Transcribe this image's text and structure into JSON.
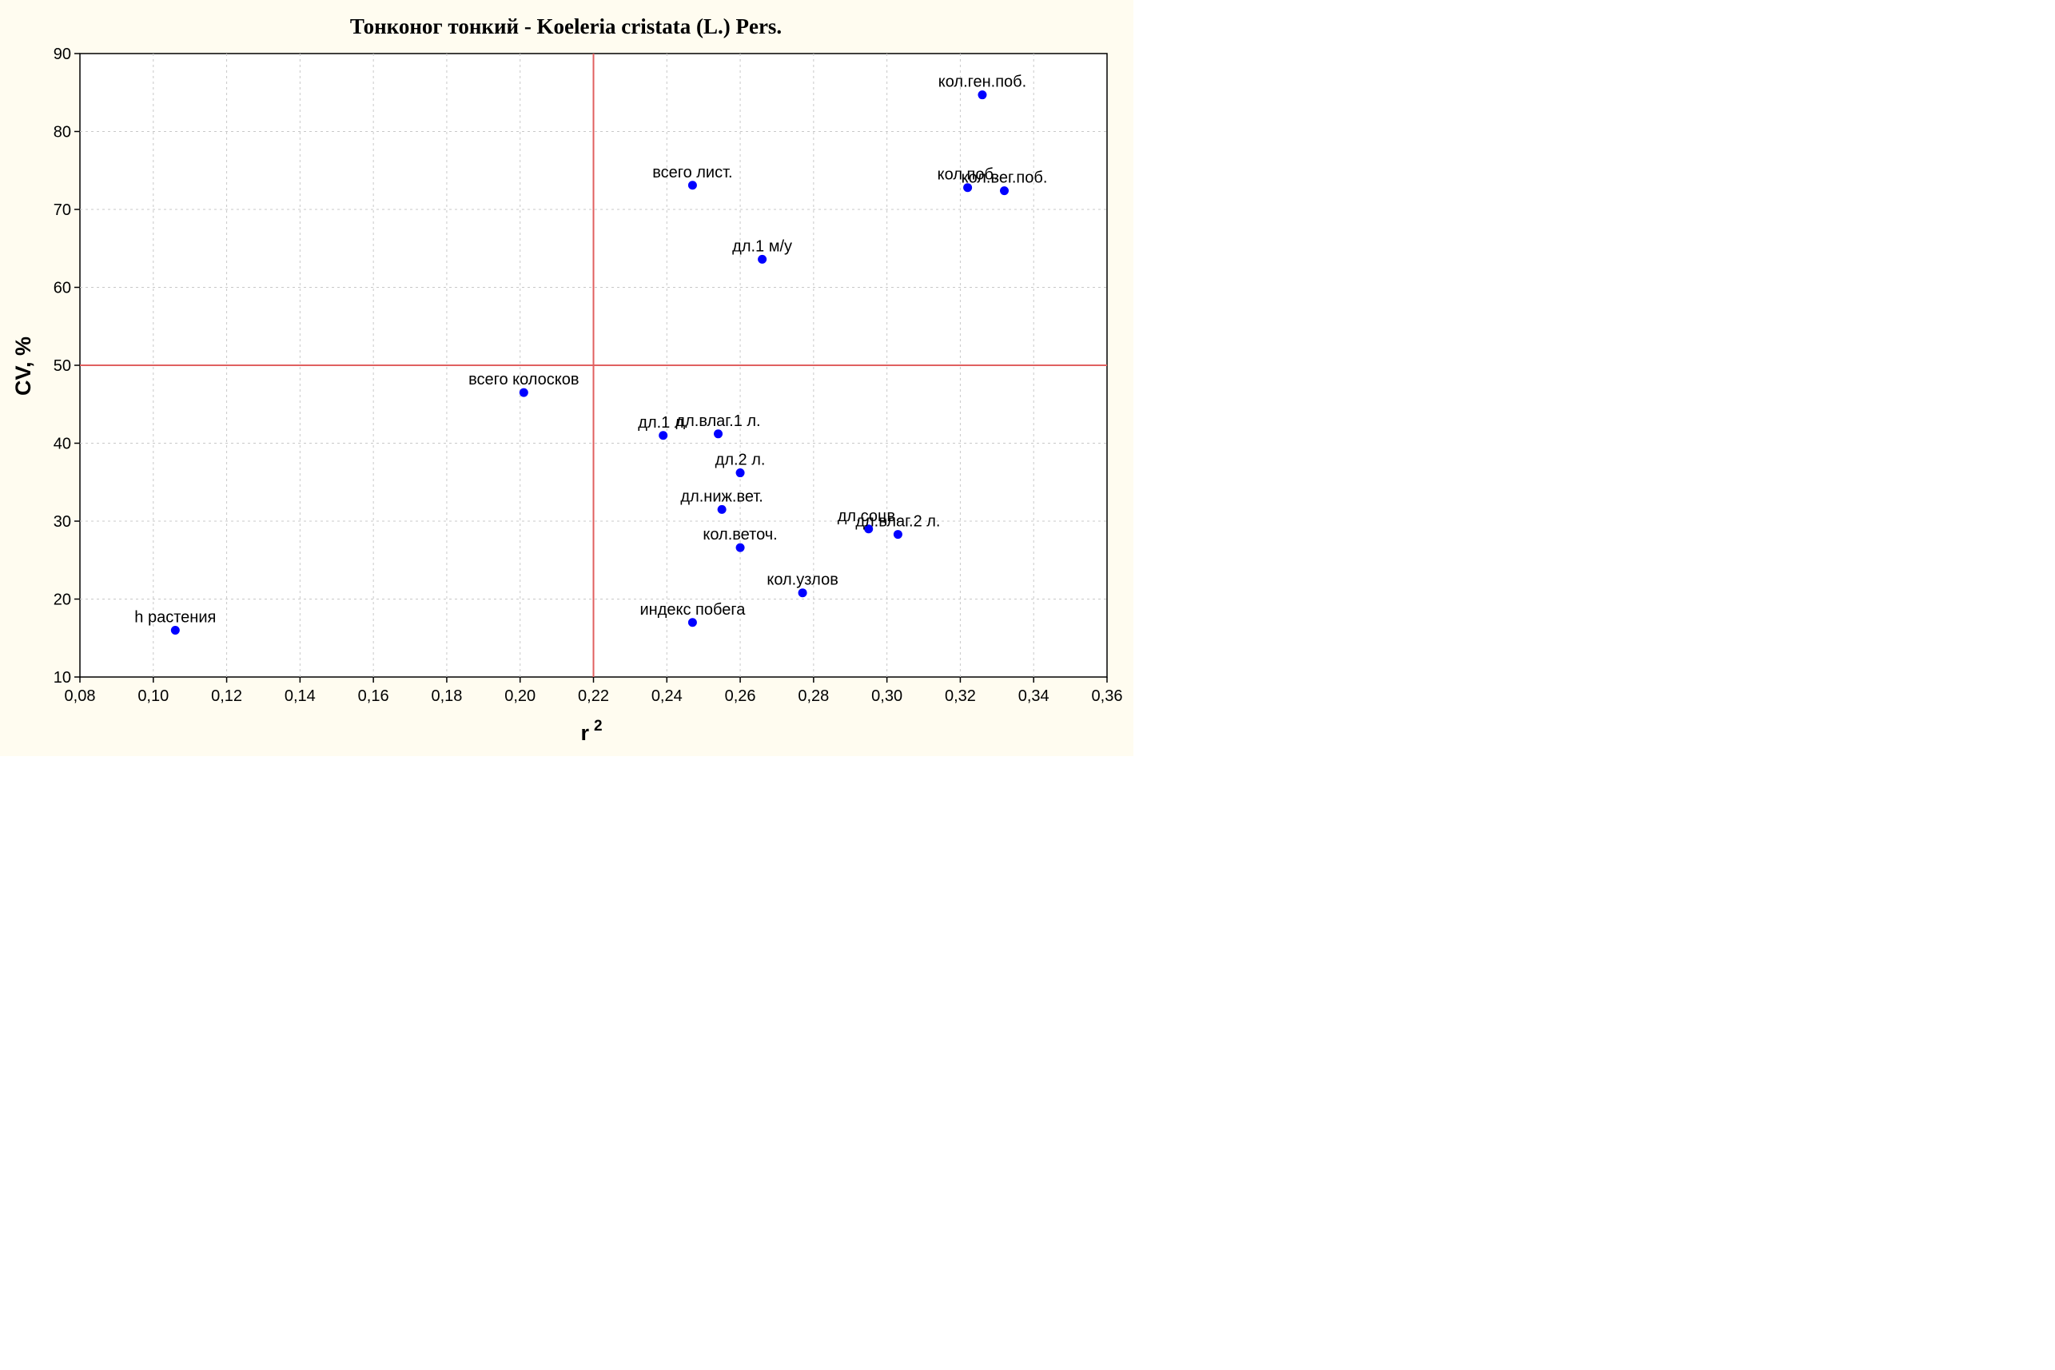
{
  "chart_data": {
    "type": "scatter",
    "title": "Тонконог тонкий - Koeleria cristata (L.) Pers.",
    "xlabel": "r",
    "xlabel_superscript": "2",
    "ylabel": "CV, %",
    "xlim": [
      0.08,
      0.36
    ],
    "ylim": [
      10,
      90
    ],
    "xticks": [
      "0,08",
      "0,10",
      "0,12",
      "0,14",
      "0,16",
      "0,18",
      "0,20",
      "0,22",
      "0,24",
      "0,26",
      "0,28",
      "0,30",
      "0,32",
      "0,34",
      "0,36"
    ],
    "yticks": [
      "10",
      "20",
      "30",
      "40",
      "50",
      "60",
      "70",
      "80",
      "90"
    ],
    "grid": true,
    "reference_lines": {
      "x": 0.22,
      "y": 50
    },
    "colors": {
      "points": "#0000ff",
      "reference": "#e06060",
      "grid": "#c8c8c8",
      "plot_bg": "#ffffff",
      "figure_bg": "#fffcf0"
    },
    "points": [
      {
        "label": "кол.ген.поб.",
        "x": 0.326,
        "y": 84.7
      },
      {
        "label": "кол.поб.",
        "x": 0.322,
        "y": 72.8
      },
      {
        "label": "кол.вег.поб.",
        "x": 0.332,
        "y": 72.4
      },
      {
        "label": "всего лист.",
        "x": 0.247,
        "y": 73.1
      },
      {
        "label": "дл.1 м/у",
        "x": 0.266,
        "y": 63.6
      },
      {
        "label": "всего колосков",
        "x": 0.201,
        "y": 46.5
      },
      {
        "label": "дл.1 л.",
        "x": 0.239,
        "y": 41.0
      },
      {
        "label": "дл.влаг.1 л.",
        "x": 0.254,
        "y": 41.2
      },
      {
        "label": "дл.2 л.",
        "x": 0.26,
        "y": 36.2
      },
      {
        "label": "дл.ниж.вет.",
        "x": 0.255,
        "y": 31.5
      },
      {
        "label": "дл.соцв.",
        "x": 0.295,
        "y": 29.0
      },
      {
        "label": "дл.влаг.2 л.",
        "x": 0.303,
        "y": 28.3
      },
      {
        "label": "кол.веточ.",
        "x": 0.26,
        "y": 26.6
      },
      {
        "label": "кол.узлов",
        "x": 0.277,
        "y": 20.8
      },
      {
        "label": "индекс побега",
        "x": 0.247,
        "y": 17.0
      },
      {
        "label": "h растения",
        "x": 0.106,
        "y": 16.0
      }
    ]
  }
}
